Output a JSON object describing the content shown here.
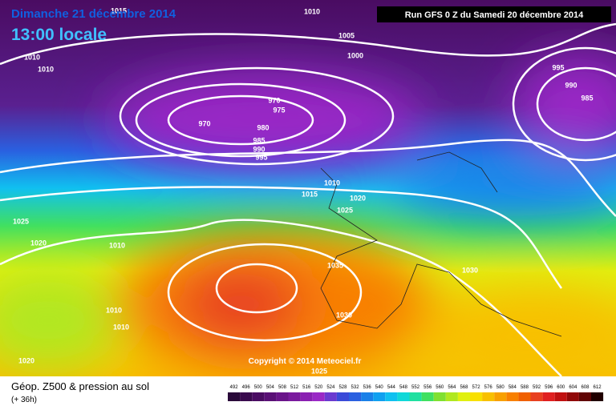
{
  "header": {
    "date": "Dimanche 21 décembre 2014",
    "time": "13:00 locale",
    "run": "Run GFS 0 Z du Samedi 20 décembre 2014"
  },
  "copyright": "Copyright © 2014 Meteociel.fr",
  "footer": {
    "title": "Géop. Z500 & pression au sol",
    "lead": "(+ 36h)"
  },
  "isobar_labels": [
    1010,
    1015,
    1010,
    1010,
    1005,
    1000,
    975,
    970,
    970,
    980,
    985,
    990,
    995,
    995,
    990,
    985,
    1010,
    1015,
    1020,
    1025,
    1025,
    1020,
    1010,
    1035,
    1030,
    1010,
    1010,
    1030,
    1020,
    1025
  ],
  "scale": {
    "values": [
      492,
      496,
      500,
      504,
      508,
      512,
      516,
      520,
      524,
      528,
      532,
      536,
      540,
      544,
      548,
      552,
      556,
      560,
      564,
      568,
      572,
      576,
      580,
      584,
      588,
      592,
      596,
      600,
      604,
      608,
      612
    ],
    "colors": [
      "#2a0a3a",
      "#3a0a4e",
      "#4a0c62",
      "#5a1076",
      "#6a148a",
      "#7a1a9e",
      "#8a20b2",
      "#9a28c6",
      "#6a3ad0",
      "#3a4ad8",
      "#2a60e0",
      "#1a80e8",
      "#10a0f0",
      "#10c0f0",
      "#10d8d8",
      "#20e0a0",
      "#40e060",
      "#80e030",
      "#b0e820",
      "#e0f010",
      "#f8e000",
      "#f8c000",
      "#f8a000",
      "#f88000",
      "#f06000",
      "#e84020",
      "#e02020",
      "#c01010",
      "#900808",
      "#600404",
      "#200000"
    ]
  }
}
